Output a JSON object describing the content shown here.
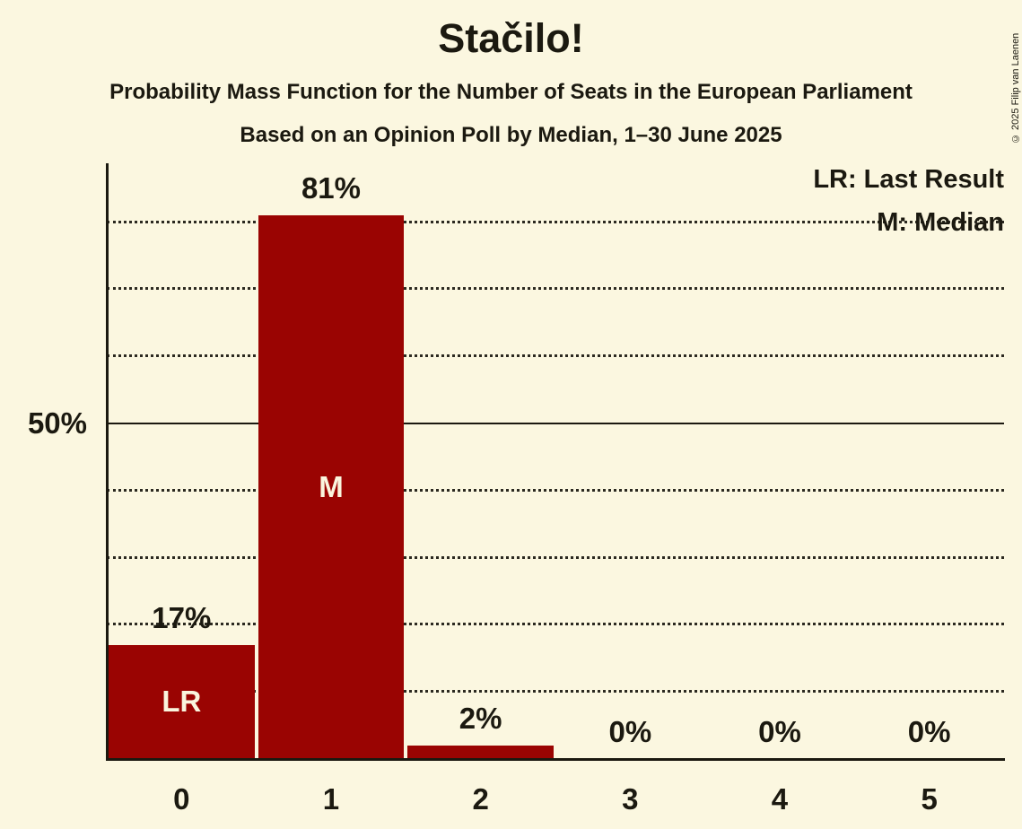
{
  "copyright": "© 2025 Filip van Laenen",
  "chart_data": {
    "type": "bar",
    "title": "Stačilo!",
    "subtitle": "Probability Mass Function for the Number of Seats in the European Parliament",
    "caption": "Based on an Opinion Poll by Median, 1–30 June 2025",
    "xlabel": "",
    "ylabel": "",
    "categories": [
      "0",
      "1",
      "2",
      "3",
      "4",
      "5"
    ],
    "values": [
      17,
      81,
      2,
      0,
      0,
      0
    ],
    "value_labels": [
      "17%",
      "81%",
      "2%",
      "0%",
      "0%",
      "0%"
    ],
    "in_bar_labels": [
      "LR",
      "M",
      "",
      "",
      "",
      ""
    ],
    "legend": [
      {
        "abbr": "LR",
        "label": "LR: Last Result"
      },
      {
        "abbr": "M",
        "label": "M: Median"
      }
    ],
    "y_axis": {
      "tick_label": "50%",
      "tick_value": 50,
      "ylim": [
        0,
        89
      ],
      "solid_line_at": 50,
      "dotted_gridlines": [
        10,
        20,
        30,
        40,
        60,
        70,
        80
      ]
    },
    "legend_position": "top-right",
    "grid": "dotted-horizontal",
    "colors": {
      "bar": "#9a0402",
      "background": "#fbf7e0",
      "text": "#1b1910",
      "in_bar_text": "#faf5de",
      "axis": "#1b1910",
      "gridline": "#2b2920"
    }
  }
}
